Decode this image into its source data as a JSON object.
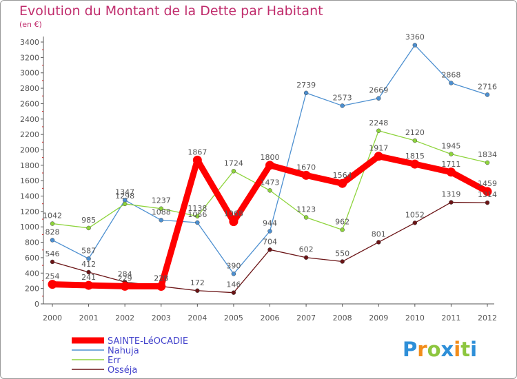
{
  "header": {
    "title": "Evolution du Montant de la Dette par Habitant",
    "subtitle": "(en €)"
  },
  "chart_data": {
    "type": "line",
    "title": "Evolution du Montant de la Dette par Habitant",
    "ylabel": "(en €)",
    "xlabel": "",
    "x": [
      "2000",
      "2001",
      "2002",
      "2003",
      "2004",
      "2005",
      "2006",
      "2007",
      "2008",
      "2009",
      "2010",
      "2011",
      "2012"
    ],
    "ylim": [
      0,
      3400
    ],
    "yticks": [
      0,
      200,
      400,
      600,
      800,
      1000,
      1200,
      1400,
      1600,
      1800,
      2000,
      2200,
      2400,
      2600,
      2800,
      3000,
      3200,
      3400
    ],
    "grid": false,
    "legend_position": "bottom-left",
    "series": [
      {
        "name": "SAINTE-LéOCADIE",
        "color": "#ff0000",
        "values": [
          254,
          241,
          229,
          228,
          1867,
          1068,
          1800,
          1670,
          1564,
          1917,
          1815,
          1711,
          1459
        ]
      },
      {
        "name": "Nahuja",
        "color": "#4c8fd0",
        "values": [
          828,
          587,
          1347,
          1088,
          1056,
          390,
          944,
          2739,
          2573,
          2669,
          3360,
          2868,
          2716
        ]
      },
      {
        "name": "Err",
        "color": "#8ed43c",
        "values": [
          1042,
          985,
          1298,
          1237,
          1138,
          1724,
          1473,
          1123,
          962,
          2248,
          2120,
          1945,
          1834
        ]
      },
      {
        "name": "Osséja",
        "color": "#6b1416",
        "values": [
          546,
          412,
          284,
          228,
          172,
          146,
          704,
          602,
          550,
          801,
          1052,
          1319,
          1314
        ]
      }
    ]
  },
  "branding": {
    "logo_letters": [
      "P",
      "r",
      "o",
      "x",
      "i",
      "t",
      "i"
    ],
    "logo_colors": [
      "#2e8fd8",
      "#f28c1a",
      "#8dc63f",
      "#2e8fd8",
      "#f28c1a",
      "#8dc63f",
      "#2e8fd8"
    ]
  }
}
